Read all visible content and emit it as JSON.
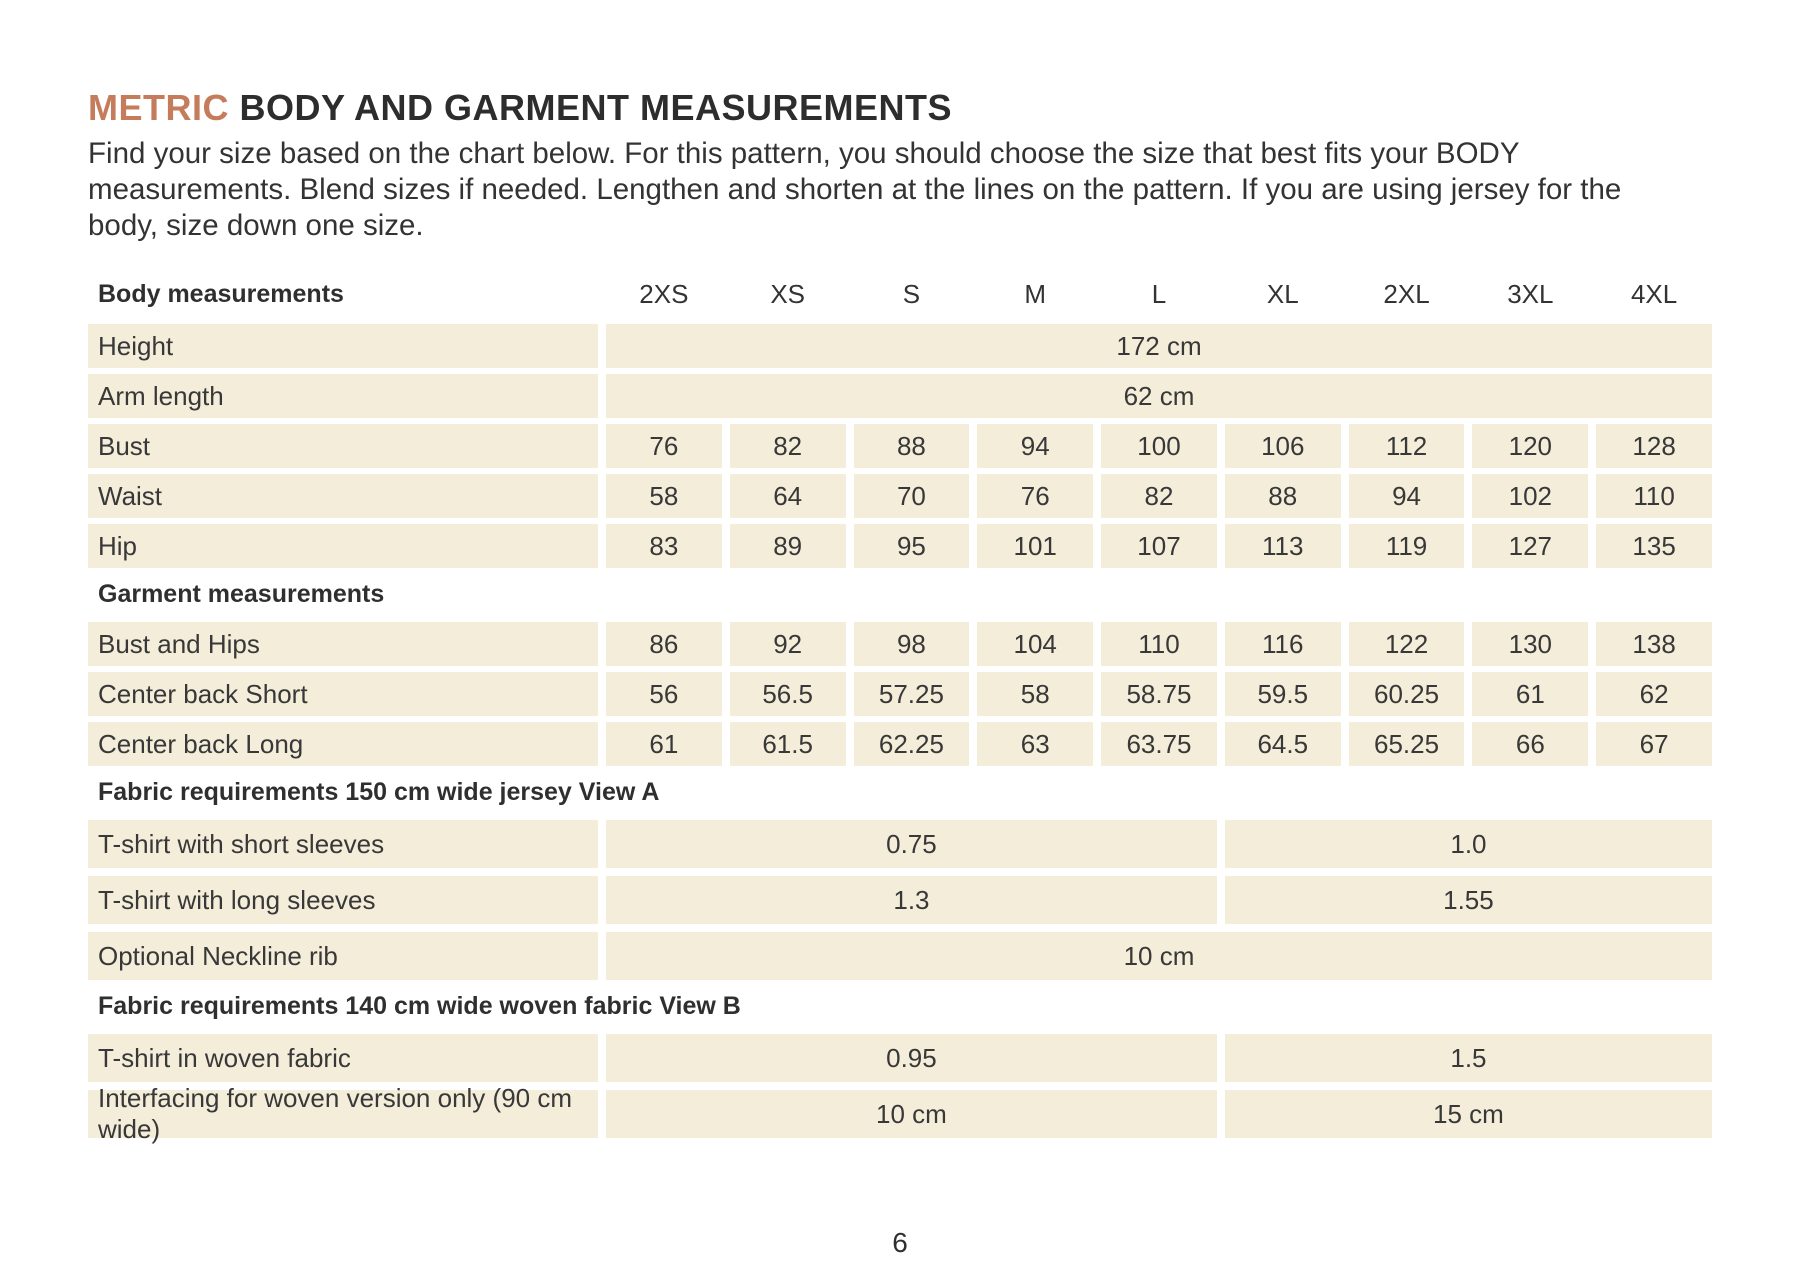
{
  "header": {
    "title_accent": "METRIC",
    "title_rest": " BODY AND GARMENT MEASUREMENTS",
    "intro": "Find your size based on the chart below. For this pattern, you should choose the size that best fits your BODY measurements. Blend sizes if needed. Lengthen and shorten at the lines on the pattern. If you are using jersey for the body, size down one size."
  },
  "colors": {
    "accent": "#c57c5b",
    "cell_background": "#f3edda",
    "text": "#333333"
  },
  "sizes": [
    "2XS",
    "XS",
    "S",
    "M",
    "L",
    "XL",
    "2XL",
    "3XL",
    "4XL"
  ],
  "table": {
    "sections": [
      {
        "heading": "Body measurements",
        "rows": [
          {
            "label": "Height",
            "type": "full_span",
            "value": "172 cm"
          },
          {
            "label": "Arm length",
            "type": "full_span",
            "value": "62 cm"
          },
          {
            "label": "Bust",
            "type": "per_size",
            "values": [
              "76",
              "82",
              "88",
              "94",
              "100",
              "106",
              "112",
              "120",
              "128"
            ]
          },
          {
            "label": "Waist",
            "type": "per_size",
            "values": [
              "58",
              "64",
              "70",
              "76",
              "82",
              "88",
              "94",
              "102",
              "110"
            ]
          },
          {
            "label": "Hip",
            "type": "per_size",
            "values": [
              "83",
              "89",
              "95",
              "101",
              "107",
              "113",
              "119",
              "127",
              "135"
            ]
          }
        ]
      },
      {
        "heading": "Garment measurements",
        "rows": [
          {
            "label": "Bust and Hips",
            "type": "per_size",
            "values": [
              "86",
              "92",
              "98",
              "104",
              "110",
              "116",
              "122",
              "130",
              "138"
            ]
          },
          {
            "label": "Center back Short",
            "type": "per_size",
            "values": [
              "56",
              "56.5",
              "57.25",
              "58",
              "58.75",
              "59.5",
              "60.25",
              "61",
              "62"
            ]
          },
          {
            "label": "Center back Long",
            "type": "per_size",
            "values": [
              "61",
              "61.5",
              "62.25",
              "63",
              "63.75",
              "64.5",
              "65.25",
              "66",
              "67"
            ]
          }
        ]
      },
      {
        "heading": "Fabric requirements 150 cm wide jersey View A",
        "tall": true,
        "rows": [
          {
            "label": "T-shirt with short sleeves",
            "type": "split",
            "values": [
              "0.75",
              "1.0"
            ]
          },
          {
            "label": "T-shirt with long sleeves",
            "type": "split",
            "values": [
              "1.3",
              "1.55"
            ]
          },
          {
            "label": "Optional Neckline rib",
            "type": "full_span",
            "value": "10 cm"
          }
        ]
      },
      {
        "heading": "Fabric requirements 140 cm wide woven fabric View B",
        "tall": true,
        "rows": [
          {
            "label": "T-shirt in woven fabric",
            "type": "split",
            "values": [
              "0.95",
              "1.5"
            ]
          },
          {
            "label": "Interfacing for woven version only (90 cm wide)",
            "type": "split",
            "values": [
              "10 cm",
              "15 cm"
            ]
          }
        ]
      }
    ]
  },
  "footer": {
    "page_number": "6"
  }
}
